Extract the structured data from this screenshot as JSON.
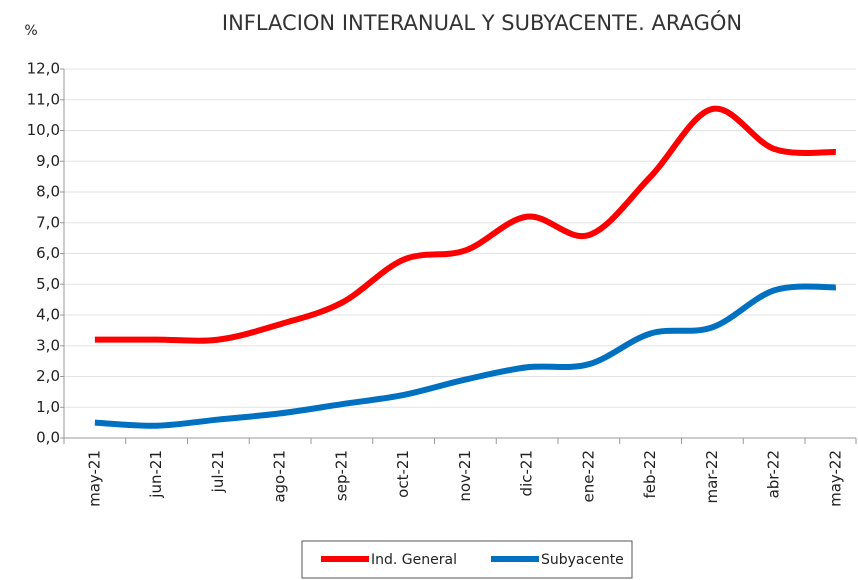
{
  "chart_data": {
    "type": "line",
    "title": "INFLACION INTERANUAL Y SUBYACENTE. ARAGÓN",
    "y_label": "%",
    "categories": [
      "may-21",
      "jun-21",
      "jul-21",
      "ago-21",
      "sep-21",
      "oct-21",
      "nov-21",
      "dic-21",
      "ene-22",
      "feb-22",
      "mar-22",
      "abr-22",
      "may-22"
    ],
    "series": [
      {
        "name": "Ind. General",
        "color": "#ff0000",
        "values": [
          3.2,
          3.2,
          3.2,
          3.7,
          4.4,
          5.8,
          6.1,
          7.2,
          6.6,
          8.5,
          10.7,
          9.4,
          9.3
        ]
      },
      {
        "name": "Subyacente",
        "color": "#0070c0",
        "values": [
          0.5,
          0.4,
          0.6,
          0.8,
          1.1,
          1.4,
          1.9,
          2.3,
          2.4,
          3.4,
          3.6,
          4.8,
          4.9
        ]
      }
    ],
    "ylim": [
      0,
      12
    ],
    "yticks": [
      {
        "value": 0,
        "label": "0,0"
      },
      {
        "value": 1,
        "label": "1,0"
      },
      {
        "value": 2,
        "label": "2,0"
      },
      {
        "value": 3,
        "label": "3,0"
      },
      {
        "value": 4,
        "label": "4,0"
      },
      {
        "value": 5,
        "label": "5,0"
      },
      {
        "value": 6,
        "label": "6,0"
      },
      {
        "value": 7,
        "label": "7,0"
      },
      {
        "value": 8,
        "label": "8,0"
      },
      {
        "value": 9,
        "label": "9,0"
      },
      {
        "value": 10,
        "label": "10,0"
      },
      {
        "value": 11,
        "label": "11,0"
      },
      {
        "value": 12,
        "label": "12,0"
      }
    ],
    "grid": true,
    "legend": "bottom",
    "smooth": true
  }
}
